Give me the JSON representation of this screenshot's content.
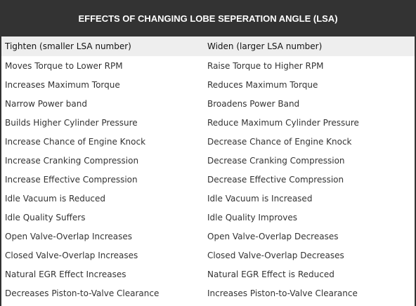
{
  "title": "EFFECTS OF CHANGING LOBE SEPERATION ANGLE (LSA)",
  "columns": [
    "Tighten (smaller LSA number)",
    "Widen (larger LSA number)"
  ],
  "rows": [
    [
      "Moves Torque to Lower RPM",
      "Raise Torque to Higher RPM"
    ],
    [
      "Increases Maximum Torque",
      "Reduces Maximum Torque"
    ],
    [
      "Narrow Power band",
      "Broadens Power Band"
    ],
    [
      "Builds Higher Cylinder Pressure",
      "Reduce Maximum Cylinder Pressure"
    ],
    [
      "Increase Chance of Engine Knock",
      "Decrease Chance of Engine Knock"
    ],
    [
      "Increase Cranking Compression",
      "Decrease Cranking Compression"
    ],
    [
      "Increase Effective Compression",
      "Decrease Effective Compression"
    ],
    [
      "Idle Vacuum is Reduced",
      "Idle Vacuum is Increased"
    ],
    [
      "Idle Quality Suffers",
      "Idle Quality Improves"
    ],
    [
      "Open Valve-Overlap Increases",
      "Open Valve-Overlap Decreases"
    ],
    [
      "Closed Valve-Overlap Increases",
      "Closed Valve-Overlap Decreases"
    ],
    [
      "Natural EGR Effect Increases",
      "Natural EGR Effect is Reduced"
    ],
    [
      "Decreases Piston-to-Valve Clearance",
      "Increases Piston-to-Valve Clearance"
    ]
  ],
  "colors": {
    "frame": "#333333",
    "title_text": "#ffffff",
    "header_row": "#eeeeee",
    "body_text": "#333333"
  }
}
